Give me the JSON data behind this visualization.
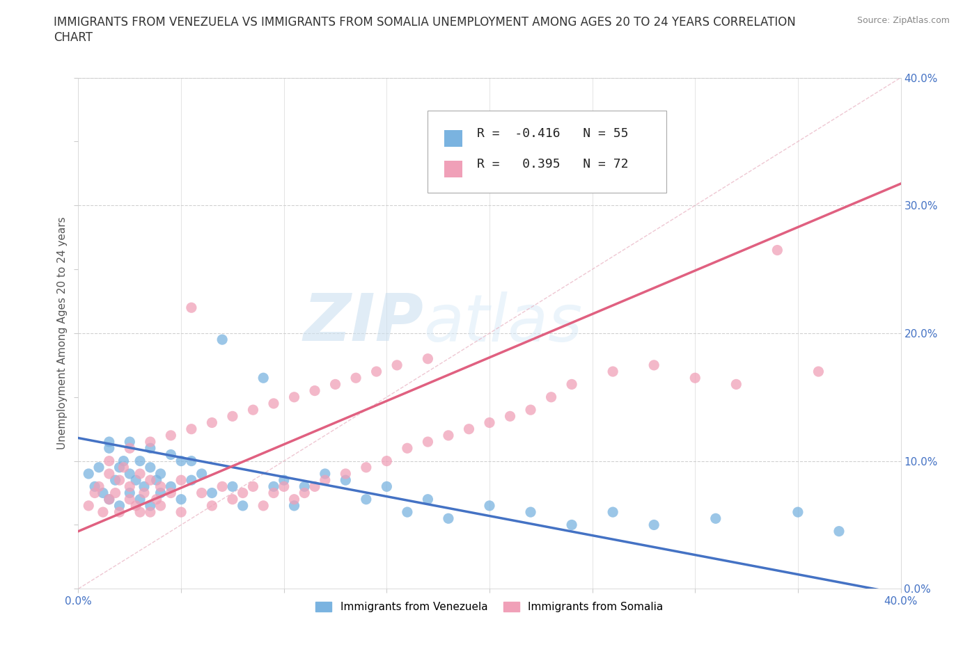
{
  "title_line1": "IMMIGRANTS FROM VENEZUELA VS IMMIGRANTS FROM SOMALIA UNEMPLOYMENT AMONG AGES 20 TO 24 YEARS CORRELATION",
  "title_line2": "CHART",
  "source_text": "Source: ZipAtlas.com",
  "ylabel": "Unemployment Among Ages 20 to 24 years",
  "xlim": [
    0.0,
    0.4
  ],
  "ylim": [
    0.0,
    0.4
  ],
  "color_venezuela": "#7ab3e0",
  "color_somalia": "#f0a0b8",
  "color_venezuela_line": "#4472c4",
  "color_somalia_line": "#e06080",
  "R_venezuela": -0.416,
  "N_venezuela": 55,
  "R_somalia": 0.395,
  "N_somalia": 72,
  "ven_slope": -0.305,
  "ven_intercept": 0.118,
  "som_slope": 0.68,
  "som_intercept": 0.045,
  "venezuela_x": [
    0.005,
    0.008,
    0.01,
    0.012,
    0.015,
    0.015,
    0.018,
    0.02,
    0.02,
    0.022,
    0.025,
    0.025,
    0.028,
    0.03,
    0.03,
    0.032,
    0.035,
    0.035,
    0.038,
    0.04,
    0.04,
    0.045,
    0.05,
    0.05,
    0.055,
    0.06,
    0.065,
    0.07,
    0.075,
    0.08,
    0.09,
    0.095,
    0.1,
    0.105,
    0.11,
    0.12,
    0.13,
    0.14,
    0.15,
    0.16,
    0.17,
    0.18,
    0.2,
    0.22,
    0.24,
    0.26,
    0.28,
    0.31,
    0.35,
    0.37,
    0.015,
    0.025,
    0.035,
    0.045,
    0.055
  ],
  "venezuela_y": [
    0.09,
    0.08,
    0.095,
    0.075,
    0.11,
    0.07,
    0.085,
    0.095,
    0.065,
    0.1,
    0.09,
    0.075,
    0.085,
    0.1,
    0.07,
    0.08,
    0.095,
    0.065,
    0.085,
    0.09,
    0.075,
    0.08,
    0.1,
    0.07,
    0.085,
    0.09,
    0.075,
    0.195,
    0.08,
    0.065,
    0.165,
    0.08,
    0.085,
    0.065,
    0.08,
    0.09,
    0.085,
    0.07,
    0.08,
    0.06,
    0.07,
    0.055,
    0.065,
    0.06,
    0.05,
    0.06,
    0.05,
    0.055,
    0.06,
    0.045,
    0.115,
    0.115,
    0.11,
    0.105,
    0.1
  ],
  "somalia_x": [
    0.005,
    0.008,
    0.01,
    0.012,
    0.015,
    0.015,
    0.018,
    0.02,
    0.02,
    0.022,
    0.025,
    0.025,
    0.028,
    0.03,
    0.03,
    0.032,
    0.035,
    0.035,
    0.038,
    0.04,
    0.04,
    0.045,
    0.05,
    0.05,
    0.055,
    0.06,
    0.065,
    0.07,
    0.075,
    0.08,
    0.085,
    0.09,
    0.095,
    0.1,
    0.105,
    0.11,
    0.115,
    0.12,
    0.13,
    0.14,
    0.15,
    0.16,
    0.17,
    0.18,
    0.19,
    0.2,
    0.21,
    0.22,
    0.23,
    0.24,
    0.26,
    0.28,
    0.3,
    0.32,
    0.34,
    0.36,
    0.015,
    0.025,
    0.035,
    0.045,
    0.055,
    0.065,
    0.075,
    0.085,
    0.095,
    0.105,
    0.115,
    0.125,
    0.135,
    0.145,
    0.155,
    0.17
  ],
  "somalia_y": [
    0.065,
    0.075,
    0.08,
    0.06,
    0.09,
    0.07,
    0.075,
    0.085,
    0.06,
    0.095,
    0.08,
    0.07,
    0.065,
    0.09,
    0.06,
    0.075,
    0.085,
    0.06,
    0.07,
    0.08,
    0.065,
    0.075,
    0.085,
    0.06,
    0.22,
    0.075,
    0.065,
    0.08,
    0.07,
    0.075,
    0.08,
    0.065,
    0.075,
    0.08,
    0.07,
    0.075,
    0.08,
    0.085,
    0.09,
    0.095,
    0.1,
    0.11,
    0.115,
    0.12,
    0.125,
    0.13,
    0.135,
    0.14,
    0.15,
    0.16,
    0.17,
    0.175,
    0.165,
    0.16,
    0.265,
    0.17,
    0.1,
    0.11,
    0.115,
    0.12,
    0.125,
    0.13,
    0.135,
    0.14,
    0.145,
    0.15,
    0.155,
    0.16,
    0.165,
    0.17,
    0.175,
    0.18
  ],
  "watermark1": "ZIP",
  "watermark2": "atlas",
  "background_color": "#ffffff",
  "grid_color": "#d0d0d0",
  "title_fontsize": 12,
  "label_fontsize": 11,
  "tick_fontsize": 11,
  "legend_fontsize": 13,
  "tick_color": "#4472c4"
}
